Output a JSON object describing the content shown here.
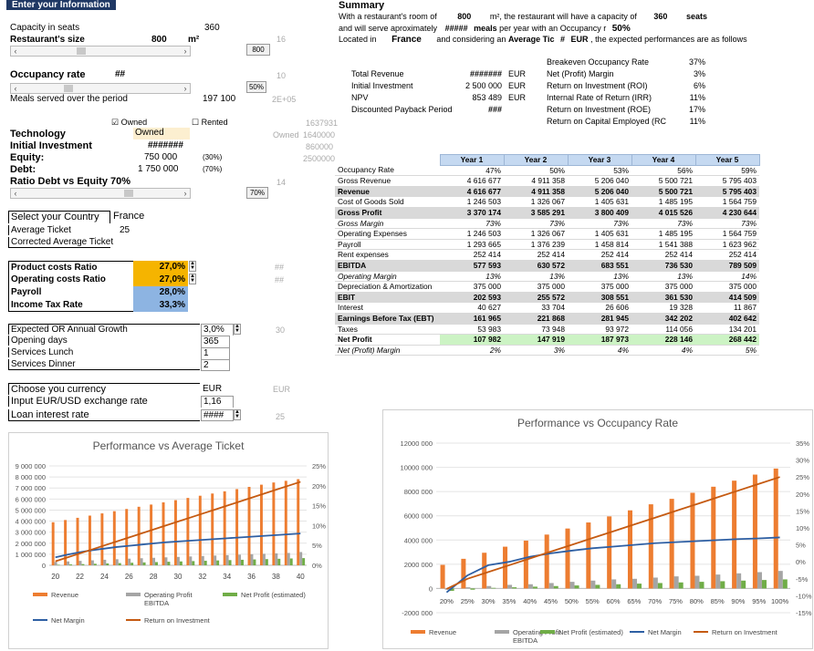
{
  "header": {
    "title": "Enter your Information"
  },
  "left": {
    "capacity_label": "Capacity in seats",
    "capacity_value": "360",
    "capacity_grey": "16",
    "size_label": "Restaurant's size",
    "size_value": "800",
    "size_unit": "m²",
    "size_button": "800",
    "occupancy_label": "Occupancy rate",
    "occupancy_value": "##",
    "occupancy_grey": "10",
    "occupancy_button": "50%",
    "meals_label": "Meals served over the period",
    "meals_value": "197 100",
    "meals_grey": "2E+05",
    "owned_label": "Owned",
    "rented_label": "Rented",
    "tech_label": "Technology",
    "tech_value": "Owned",
    "tech_grey_a": "1637931",
    "tech_grey_b": "Owned",
    "tech_grey_b_val": "1640000",
    "init_label": "Initial Investment",
    "init_value": "#######",
    "init_grey": "860000",
    "equity_label": "Equity:",
    "equity_value": "750 000",
    "equity_pct": "(30%)",
    "debt_label": "Debt:",
    "debt_value": "1 750 000",
    "debt_pct": "(70%)",
    "debt_grey": "2500000",
    "ratio_label": "Ratio Debt vs Equity",
    "ratio_value": "70%",
    "ratio_grey": "14",
    "ratio_button": "70%",
    "country_label": "Select your Country",
    "country_value": "France",
    "avg_ticket_label": "Average Ticket",
    "avg_ticket_value": "25",
    "corrected_label": "Corrected Average Ticket",
    "product_label": "Product costs Ratio",
    "product_value": "27,0%",
    "product_grey": "##",
    "opcost_label": "Operating costs Ratio",
    "opcost_value": "27,0%",
    "opcost_grey": "##",
    "payroll_label": "Payroll",
    "payroll_value": "28,0%",
    "tax_label": "Income Tax Rate",
    "tax_value": "33,3%",
    "growth_label": "Expected OR Annual Growth",
    "growth_value": "3,0%",
    "growth_grey": "30",
    "days_label": "Opening days",
    "days_value": "365",
    "lunch_label": "Services Lunch",
    "lunch_value": "1",
    "dinner_label": "Services Dinner",
    "dinner_value": "2",
    "currency_label": "Choose you currency",
    "currency_value": "EUR",
    "currency_grey": "EUR",
    "fx_label": "Input EUR/USD exchange rate",
    "fx_value": "1,16",
    "loan_label": "Loan interest rate",
    "loan_value": "####",
    "loan_grey": "25"
  },
  "summary": {
    "title": "Summary",
    "line1_a": "With a restaurant's room of",
    "line1_v1": "800",
    "line1_b": "m², the restaurant will have a capacity of",
    "line1_v2": "360",
    "line1_c": "seats",
    "line2_a": "and will serve aproximately",
    "line2_v1": "#####",
    "line2_b": "meals",
    "line2_c": "per year with an Occupancy r",
    "line2_v2": "50%",
    "line3_a": "Located in",
    "line3_v1": "France",
    "line3_b": "and considering an",
    "line3_c": "Average Tic",
    "line3_v2": "#",
    "line3_d": "EUR",
    ", ": "",
    "line3_e": ", the expected performances are as follows",
    "kpi_left": [
      {
        "label": "Total Revenue",
        "value": "#######",
        "unit": "EUR"
      },
      {
        "label": "Initial Investment",
        "value": "2 500 000",
        "unit": "EUR"
      },
      {
        "label": "NPV",
        "value": "853 489",
        "unit": "EUR"
      },
      {
        "label": "Discounted Payback Period",
        "value": "###",
        "unit": ""
      }
    ],
    "kpi_right": [
      {
        "label": "Breakeven Occupancy Rate",
        "value": "37%"
      },
      {
        "label": "Net (Profit) Margin",
        "value": "3%"
      },
      {
        "label": "Return on Investment (ROI)",
        "value": "6%"
      },
      {
        "label": "Internal Rate of Return (IRR)",
        "value": "11%"
      },
      {
        "label": "Return on Investment (ROE)",
        "value": "17%"
      },
      {
        "label": "Return on Capital Employed (RC",
        "value": "11%"
      }
    ]
  },
  "table": {
    "years": [
      "Year 1",
      "Year 2",
      "Year 3",
      "Year 4",
      "Year 5"
    ],
    "rows": [
      {
        "label": "Occupancy Rate",
        "cls": "",
        "vals": [
          "47%",
          "50%",
          "53%",
          "56%",
          "59%"
        ]
      },
      {
        "label": "Gross Revenue",
        "cls": "",
        "vals": [
          "4 616 677",
          "4 911 358",
          "5 206 040",
          "5 500 721",
          "5 795 403"
        ]
      },
      {
        "label": "Revenue",
        "cls": "gray",
        "vals": [
          "4 616 677",
          "4 911 358",
          "5 206 040",
          "5 500 721",
          "5 795 403"
        ]
      },
      {
        "label": "Cost of Goods Sold",
        "cls": "",
        "vals": [
          "1 246 503",
          "1 326 067",
          "1 405 631",
          "1 485 195",
          "1 564 759"
        ]
      },
      {
        "label": "Gross Profit",
        "cls": "gray",
        "vals": [
          "3 370 174",
          "3 585 291",
          "3 800 409",
          "4 015 526",
          "4 230 644"
        ]
      },
      {
        "label": "Gross Margin",
        "cls": "it",
        "vals": [
          "73%",
          "73%",
          "73%",
          "73%",
          "73%"
        ]
      },
      {
        "label": "Operating Expenses",
        "cls": "",
        "vals": [
          "1 246 503",
          "1 326 067",
          "1 405 631",
          "1 485 195",
          "1 564 759"
        ]
      },
      {
        "label": "Payroll",
        "cls": "",
        "vals": [
          "1 293 665",
          "1 376 239",
          "1 458 814",
          "1 541 388",
          "1 623 962"
        ]
      },
      {
        "label": "Rent expenses",
        "cls": "",
        "vals": [
          "252 414",
          "252 414",
          "252 414",
          "252 414",
          "252 414"
        ]
      },
      {
        "label": "EBITDA",
        "cls": "gray",
        "vals": [
          "577 593",
          "630 572",
          "683 551",
          "736 530",
          "789 509"
        ]
      },
      {
        "label": "Operating Margin",
        "cls": "it",
        "vals": [
          "13%",
          "13%",
          "13%",
          "13%",
          "14%"
        ]
      },
      {
        "label": "Depreciation & Amortization",
        "cls": "",
        "vals": [
          "375 000",
          "375 000",
          "375 000",
          "375 000",
          "375 000"
        ]
      },
      {
        "label": "EBIT",
        "cls": "gray",
        "vals": [
          "202 593",
          "255 572",
          "308 551",
          "361 530",
          "414 509"
        ]
      },
      {
        "label": "Interest",
        "cls": "",
        "vals": [
          "40 627",
          "33 704",
          "26 606",
          "19 328",
          "11 867"
        ]
      },
      {
        "label": "Earnings Before Tax (EBT)",
        "cls": "gray",
        "vals": [
          "161 965",
          "221 868",
          "281 945",
          "342 202",
          "402 642"
        ]
      },
      {
        "label": "Taxes",
        "cls": "",
        "vals": [
          "53 983",
          "73 948",
          "93 972",
          "114 056",
          "134 201"
        ]
      },
      {
        "label": "Net Profit",
        "cls": "green",
        "vals": [
          "107 982",
          "147 919",
          "187 973",
          "228 146",
          "268 442"
        ]
      },
      {
        "label": "Net (Profit) Margin",
        "cls": "it",
        "vals": [
          "2%",
          "3%",
          "4%",
          "4%",
          "5%"
        ]
      }
    ]
  },
  "chart_data": [
    {
      "type": "bar",
      "title": "Performance vs Average Ticket",
      "categories": [
        20,
        21,
        22,
        23,
        24,
        25,
        26,
        27,
        28,
        29,
        30,
        31,
        32,
        33,
        34,
        35,
        36,
        37,
        38,
        39,
        40
      ],
      "x_tick_labels": [
        "20",
        "22",
        "24",
        "26",
        "28",
        "30",
        "32",
        "34",
        "36",
        "38",
        "40"
      ],
      "y_ticks": [
        "9 000 000",
        "8 000 000",
        "7 000 000",
        "6 000 000",
        "5 000 000",
        "4 000 000",
        "3 000 000",
        "2 000 000",
        "1 000 000",
        "0"
      ],
      "y2_ticks": [
        "25%",
        "20%",
        "15%",
        "10%",
        "5%",
        "0%"
      ],
      "ylim": [
        0,
        9000000
      ],
      "y2lim": [
        0,
        0.25
      ],
      "series": [
        {
          "name": "Revenue",
          "axis": "left",
          "color": "#ed7d31",
          "values": [
            3900000,
            4100000,
            4300000,
            4500000,
            4700000,
            4900000,
            5100000,
            5300000,
            5500000,
            5700000,
            5900000,
            6100000,
            6300000,
            6500000,
            6700000,
            6900000,
            7100000,
            7300000,
            7500000,
            7650000,
            7800000
          ]
        },
        {
          "name": "Operating Profit EBITDA",
          "axis": "left",
          "color": "#a5a5a5",
          "values": [
            300000,
            350000,
            400000,
            450000,
            500000,
            550000,
            600000,
            640000,
            680000,
            720000,
            760000,
            800000,
            840000,
            880000,
            920000,
            960000,
            1000000,
            1040000,
            1080000,
            1120000,
            1200000
          ]
        },
        {
          "name": "Net Profit (estimated)",
          "axis": "left",
          "color": "#70ad47",
          "values": [
            50000,
            80000,
            110000,
            140000,
            170000,
            200000,
            230000,
            260000,
            290000,
            320000,
            350000,
            380000,
            410000,
            440000,
            470000,
            500000,
            530000,
            560000,
            590000,
            620000,
            650000
          ]
        },
        {
          "name": "Net Margin",
          "axis": "right",
          "color": "#2e5fa3",
          "type": "line",
          "values": [
            0.02,
            0.027,
            0.033,
            0.038,
            0.042,
            0.046,
            0.049,
            0.052,
            0.055,
            0.058,
            0.06,
            0.062,
            0.064,
            0.066,
            0.068,
            0.07,
            0.072,
            0.074,
            0.076,
            0.078,
            0.08
          ]
        },
        {
          "name": "Return on Investment",
          "axis": "right",
          "color": "#c55a11",
          "type": "line",
          "values": [
            0.01,
            0.02,
            0.03,
            0.04,
            0.05,
            0.06,
            0.07,
            0.08,
            0.09,
            0.1,
            0.11,
            0.12,
            0.13,
            0.14,
            0.15,
            0.16,
            0.17,
            0.18,
            0.19,
            0.2,
            0.21
          ]
        }
      ]
    },
    {
      "type": "bar",
      "title": "Performance vs Occupancy Rate",
      "categories": [
        "20%",
        "25%",
        "30%",
        "35%",
        "40%",
        "45%",
        "50%",
        "55%",
        "60%",
        "65%",
        "70%",
        "75%",
        "80%",
        "85%",
        "90%",
        "95%",
        "100%"
      ],
      "y_ticks": [
        "12000 000",
        "10000 000",
        "8000 000",
        "6000 000",
        "4000 000",
        "2000 000",
        "0",
        "-2000 000"
      ],
      "y2_ticks": [
        "35%",
        "30%",
        "25%",
        "20%",
        "15%",
        "10%",
        "5%",
        "0%",
        "-5%",
        "-10%",
        "-15%"
      ],
      "ylim": [
        -2000000,
        12000000
      ],
      "y2lim": [
        -0.15,
        0.35
      ],
      "series": [
        {
          "name": "Revenue",
          "axis": "left",
          "color": "#ed7d31",
          "values": [
            1950000,
            2450000,
            2950000,
            3450000,
            3950000,
            4450000,
            4950000,
            5450000,
            5950000,
            6450000,
            6950000,
            7400000,
            7900000,
            8400000,
            8900000,
            9400000,
            9900000
          ]
        },
        {
          "name": "Operating Profit EBITDA",
          "axis": "left",
          "color": "#a5a5a5",
          "values": [
            -100000,
            100000,
            200000,
            300000,
            350000,
            450000,
            550000,
            650000,
            750000,
            800000,
            900000,
            1000000,
            1050000,
            1150000,
            1250000,
            1350000,
            1450000
          ]
        },
        {
          "name": "Net Profit (estimated)",
          "axis": "left",
          "color": "#70ad47",
          "values": [
            -200000,
            -100000,
            50000,
            100000,
            150000,
            200000,
            250000,
            300000,
            350000,
            400000,
            450000,
            500000,
            550000,
            600000,
            650000,
            700000,
            750000
          ]
        },
        {
          "name": "Net Margin",
          "axis": "right",
          "color": "#2e5fa3",
          "type": "line",
          "values": [
            -0.09,
            -0.04,
            -0.01,
            0.0,
            0.015,
            0.025,
            0.033,
            0.04,
            0.045,
            0.05,
            0.055,
            0.058,
            0.061,
            0.064,
            0.067,
            0.069,
            0.072
          ]
        },
        {
          "name": "Return on Investment",
          "axis": "right",
          "color": "#c55a11",
          "type": "line",
          "values": [
            -0.08,
            -0.05,
            -0.03,
            -0.01,
            0.01,
            0.03,
            0.05,
            0.07,
            0.09,
            0.11,
            0.13,
            0.15,
            0.17,
            0.19,
            0.21,
            0.23,
            0.25
          ]
        }
      ]
    }
  ]
}
